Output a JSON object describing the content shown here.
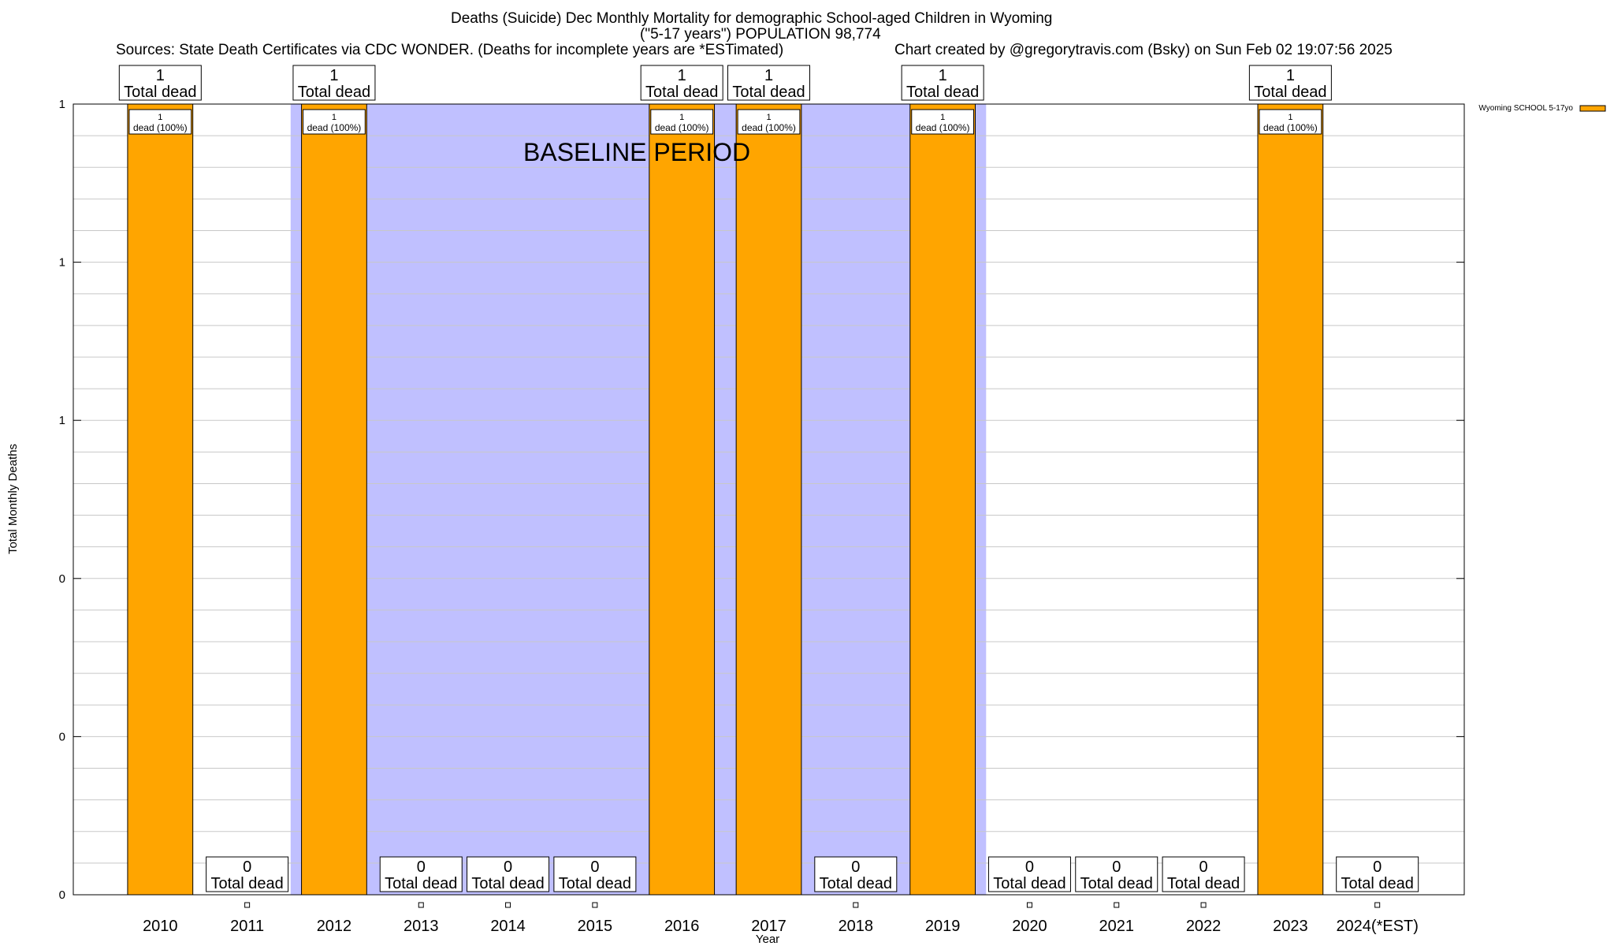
{
  "title": {
    "line1": "Deaths (Suicide) Dec Monthly Mortality for demographic School-aged Children in Wyoming",
    "line2": "(\"5-17 years\") POPULATION 98,774",
    "sources": "Sources: State Death Certificates via CDC WONDER. (Deaths for incomplete years are *ESTimated)",
    "credit": "Chart created by @gregorytravis.com (Bsky) on Sun Feb 02 19:07:56 2025"
  },
  "colors": {
    "bar_fill": "#ffa500",
    "baseline_fill": "#c0c0ff",
    "grid": "#c8c8c8",
    "frame": "#000000"
  },
  "chart_data": {
    "type": "bar",
    "title": "Deaths (Suicide) Dec Monthly Mortality for demographic School-aged Children in Wyoming",
    "xlabel": "Year",
    "ylabel": "Total Monthly Deaths",
    "categories": [
      "2010",
      "2011",
      "2012",
      "2013",
      "2014",
      "2015",
      "2016",
      "2017",
      "2018",
      "2019",
      "2020",
      "2021",
      "2022",
      "2023",
      "2024(*EST)"
    ],
    "series": [
      {
        "name": "Wyoming SCHOOL 5-17yo",
        "values": [
          1,
          0,
          1,
          0,
          0,
          0,
          1,
          1,
          0,
          1,
          0,
          0,
          0,
          1,
          0
        ]
      }
    ],
    "total_labels": [
      "1",
      "0",
      "1",
      "0",
      "0",
      "0",
      "1",
      "1",
      "0",
      "1",
      "0",
      "0",
      "0",
      "1",
      "0"
    ],
    "total_suffix": "Total dead",
    "segment_label_count": "1",
    "segment_label_text": "dead (100%)",
    "ylim": [
      0,
      1
    ],
    "yticks": [
      0,
      0.2,
      0.4,
      0.6,
      0.8,
      1.0
    ],
    "ytick_labels": [
      "0",
      "0",
      "0",
      "1",
      "1",
      "1"
    ],
    "grid": true,
    "legend_position": "top-right",
    "annotation": "BASELINE PERIOD",
    "baseline_period": [
      "2012",
      "2019"
    ]
  }
}
